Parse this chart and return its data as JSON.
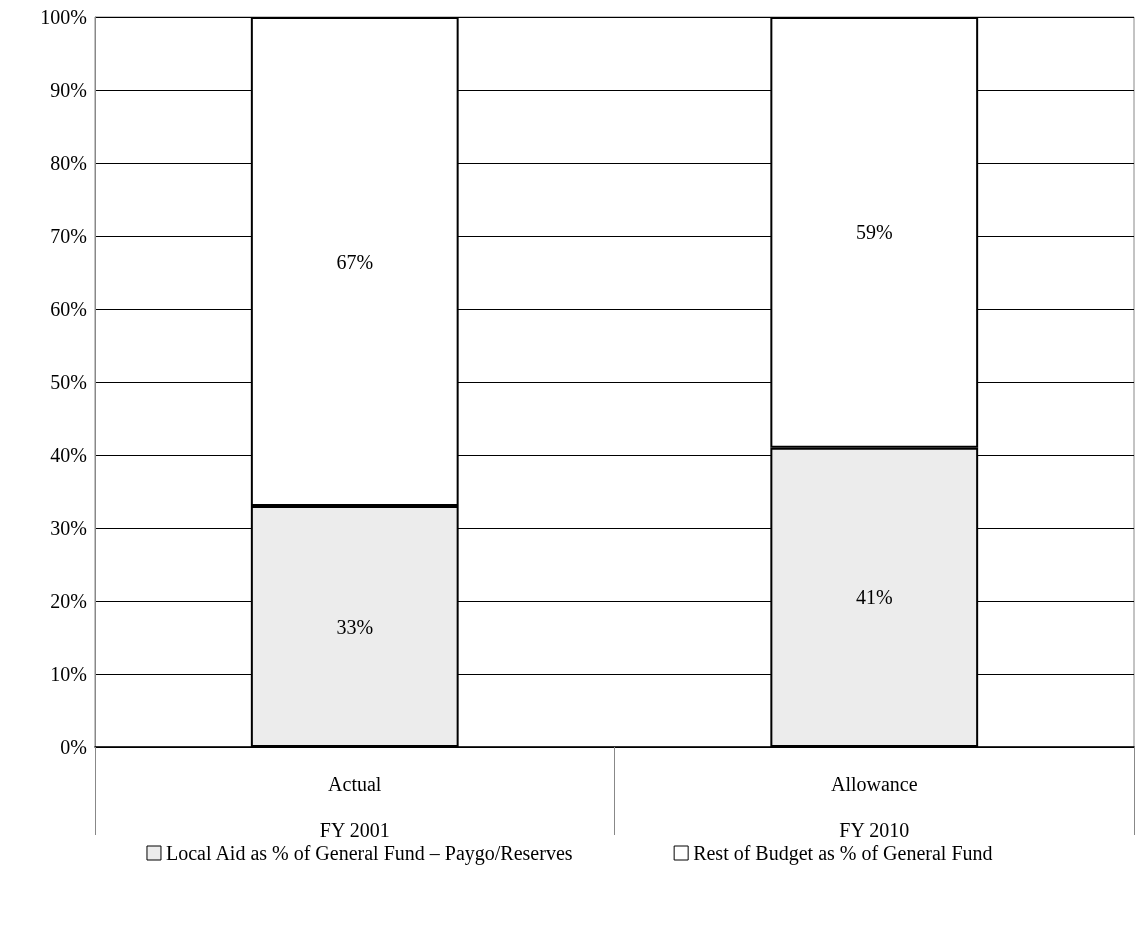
{
  "chart_data": {
    "type": "bar",
    "stacked": true,
    "categories": [
      "Actual\nFY 2001",
      "Allowance\nFY 2010"
    ],
    "series": [
      {
        "name": "Local Aid as % of General Fund – Paygo/Reserves",
        "color": "#ececec",
        "values": [
          33,
          41
        ],
        "value_labels": [
          "33%",
          "41%"
        ]
      },
      {
        "name": "Rest of Budget as % of General Fund",
        "color": "#ffffff",
        "values": [
          67,
          59
        ],
        "value_labels": [
          "67%",
          "59%"
        ]
      }
    ],
    "ylim": [
      0,
      100
    ],
    "yticks": [
      {
        "value": 0,
        "label": "0%"
      },
      {
        "value": 10,
        "label": "10%"
      },
      {
        "value": 20,
        "label": "20%"
      },
      {
        "value": 30,
        "label": "30%"
      },
      {
        "value": 40,
        "label": "40%"
      },
      {
        "value": 50,
        "label": "50%"
      },
      {
        "value": 60,
        "label": "60%"
      },
      {
        "value": 70,
        "label": "70%"
      },
      {
        "value": 80,
        "label": "80%"
      },
      {
        "value": 90,
        "label": "90%"
      },
      {
        "value": 100,
        "label": "100%"
      }
    ],
    "grid": "y",
    "legend": "bottom"
  }
}
